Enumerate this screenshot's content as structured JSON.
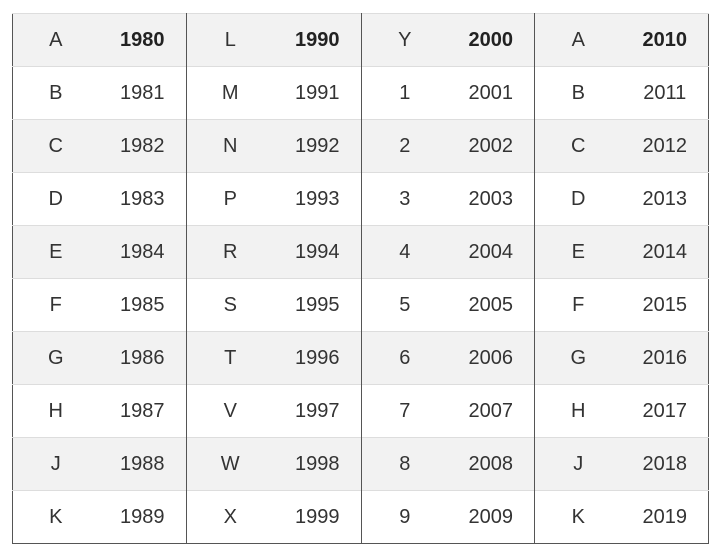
{
  "table": {
    "rows": [
      [
        "A",
        "1980",
        "L",
        "1990",
        "Y",
        "2000",
        "A",
        "2010"
      ],
      [
        "B",
        "1981",
        "M",
        "1991",
        "1",
        "2001",
        "B",
        "2011"
      ],
      [
        "C",
        "1982",
        "N",
        "1992",
        "2",
        "2002",
        "C",
        "2012"
      ],
      [
        "D",
        "1983",
        "P",
        "1993",
        "3",
        "2003",
        "D",
        "2013"
      ],
      [
        "E",
        "1984",
        "R",
        "1994",
        "4",
        "2004",
        "E",
        "2014"
      ],
      [
        "F",
        "1985",
        "S",
        "1995",
        "5",
        "2005",
        "F",
        "2015"
      ],
      [
        "G",
        "1986",
        "T",
        "1996",
        "6",
        "2006",
        "G",
        "2016"
      ],
      [
        "H",
        "1987",
        "V",
        "1997",
        "7",
        "2007",
        "H",
        "2017"
      ],
      [
        "J",
        "1988",
        "W",
        "1998",
        "8",
        "2008",
        "J",
        "2018"
      ],
      [
        "K",
        "1989",
        "X",
        "1999",
        "9",
        "2009",
        "K",
        "2019"
      ]
    ]
  }
}
